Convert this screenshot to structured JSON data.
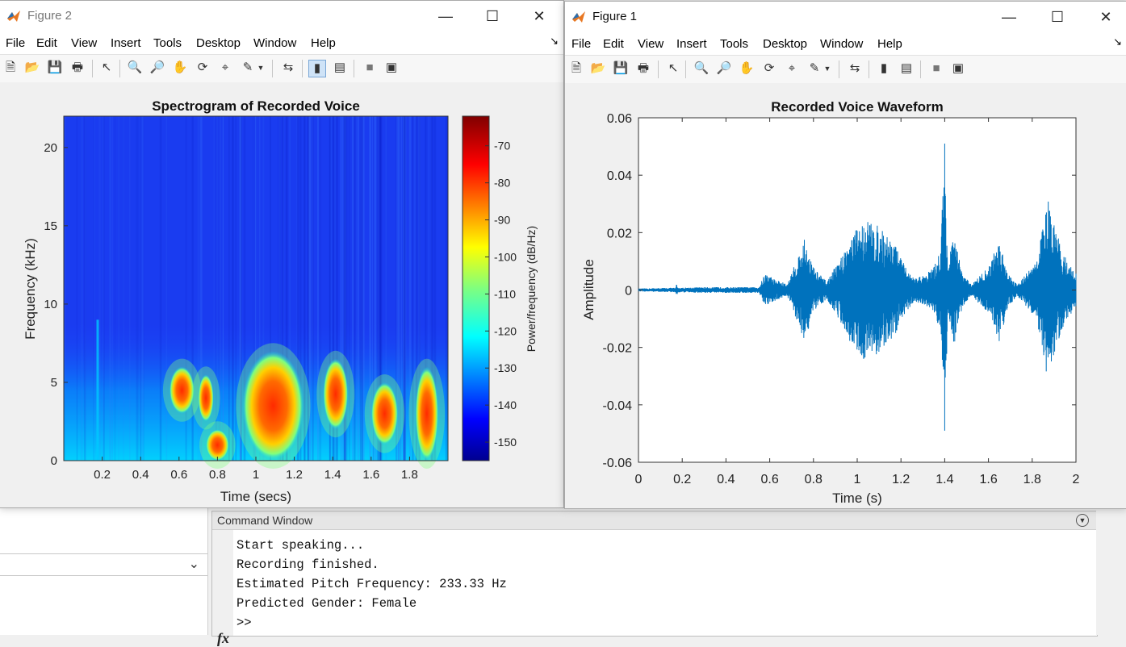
{
  "figure2": {
    "title": "Figure 2",
    "menu": [
      "File",
      "Edit",
      "View",
      "Insert",
      "Tools",
      "Desktop",
      "Window",
      "Help"
    ],
    "chart_title": "Spectrogram of Recorded Voice",
    "xlabel": "Time (secs)",
    "ylabel": "Frequency (kHz)",
    "colorbar_label": "Power/frequency (dB/Hz)",
    "x_ticks": [
      "0.2",
      "0.4",
      "0.6",
      "0.8",
      "1",
      "1.2",
      "1.4",
      "1.6",
      "1.8"
    ],
    "y_ticks": [
      "0",
      "5",
      "10",
      "15",
      "20"
    ],
    "cbar_ticks": [
      "-70",
      "-80",
      "-90",
      "-100",
      "-110",
      "-120",
      "-130",
      "-140",
      "-150"
    ]
  },
  "figure1": {
    "title": "Figure 1",
    "menu": [
      "File",
      "Edit",
      "View",
      "Insert",
      "Tools",
      "Desktop",
      "Window",
      "Help"
    ],
    "chart_title": "Recorded Voice Waveform",
    "xlabel": "Time (s)",
    "ylabel": "Amplitude",
    "x_ticks": [
      "0",
      "0.2",
      "0.4",
      "0.6",
      "0.8",
      "1",
      "1.2",
      "1.4",
      "1.6",
      "1.8",
      "2"
    ],
    "y_ticks": [
      "0.06",
      "0.04",
      "0.02",
      "0",
      "-0.02",
      "-0.04",
      "-0.06"
    ]
  },
  "command_window": {
    "title": "Command Window",
    "lines": [
      "Start speaking...",
      "Recording finished.",
      "Estimated Pitch Frequency: 233.33 Hz",
      "Predicted Gender: Female"
    ],
    "prompt": ">>",
    "fx_label": "fx"
  },
  "chart_data": [
    {
      "type": "heatmap",
      "title": "Spectrogram of Recorded Voice",
      "xlabel": "Time (secs)",
      "ylabel": "Frequency (kHz)",
      "xlim": [
        0,
        2
      ],
      "ylim": [
        0,
        22
      ],
      "colorbar": {
        "label": "Power/frequency (dB/Hz)",
        "range": [
          -155,
          -62
        ],
        "colormap": "jet"
      },
      "energy_regions": [
        {
          "t": [
            0.55,
            0.68
          ],
          "f": [
            3,
            6
          ]
        },
        {
          "t": [
            0.7,
            0.78
          ],
          "f": [
            2.5,
            5.5
          ]
        },
        {
          "t": [
            0.74,
            0.86
          ],
          "f": [
            0,
            2
          ]
        },
        {
          "t": [
            0.93,
            1.25
          ],
          "f": [
            0,
            7
          ]
        },
        {
          "t": [
            1.35,
            1.48
          ],
          "f": [
            2,
            6.5
          ]
        },
        {
          "t": [
            1.6,
            1.74
          ],
          "f": [
            1,
            5
          ]
        },
        {
          "t": [
            1.83,
            1.95
          ],
          "f": [
            0,
            6
          ]
        }
      ]
    },
    {
      "type": "line",
      "title": "Recorded Voice Waveform",
      "xlabel": "Time (s)",
      "ylabel": "Amplitude",
      "xlim": [
        0,
        2
      ],
      "ylim": [
        -0.06,
        0.06
      ],
      "color": "#0072BD",
      "envelope": [
        {
          "t": 0.0,
          "a": 0.0005
        },
        {
          "t": 0.17,
          "a": 0.0008
        },
        {
          "t": 0.175,
          "a": 0.0025
        },
        {
          "t": 0.18,
          "a": 0.0008
        },
        {
          "t": 0.3,
          "a": 0.001
        },
        {
          "t": 0.55,
          "a": 0.001
        },
        {
          "t": 0.58,
          "a": 0.006
        },
        {
          "t": 0.62,
          "a": 0.004
        },
        {
          "t": 0.68,
          "a": 0.002
        },
        {
          "t": 0.72,
          "a": 0.01
        },
        {
          "t": 0.76,
          "a": 0.018
        },
        {
          "t": 0.8,
          "a": 0.008
        },
        {
          "t": 0.86,
          "a": 0.003
        },
        {
          "t": 0.93,
          "a": 0.012
        },
        {
          "t": 0.98,
          "a": 0.02
        },
        {
          "t": 1.04,
          "a": 0.025
        },
        {
          "t": 1.1,
          "a": 0.022
        },
        {
          "t": 1.16,
          "a": 0.018
        },
        {
          "t": 1.22,
          "a": 0.008
        },
        {
          "t": 1.26,
          "a": 0.004
        },
        {
          "t": 1.3,
          "a": 0.005
        },
        {
          "t": 1.35,
          "a": 0.008
        },
        {
          "t": 1.38,
          "a": 0.014
        },
        {
          "t": 1.4,
          "a": 0.05
        },
        {
          "t": 1.415,
          "a": 0.008
        },
        {
          "t": 1.44,
          "a": 0.02
        },
        {
          "t": 1.48,
          "a": 0.006
        },
        {
          "t": 1.52,
          "a": 0.002
        },
        {
          "t": 1.6,
          "a": 0.008
        },
        {
          "t": 1.65,
          "a": 0.018
        },
        {
          "t": 1.69,
          "a": 0.006
        },
        {
          "t": 1.73,
          "a": 0.002
        },
        {
          "t": 1.82,
          "a": 0.01
        },
        {
          "t": 1.87,
          "a": 0.032
        },
        {
          "t": 1.91,
          "a": 0.02
        },
        {
          "t": 1.96,
          "a": 0.01
        },
        {
          "t": 2.0,
          "a": 0.006
        }
      ]
    }
  ]
}
